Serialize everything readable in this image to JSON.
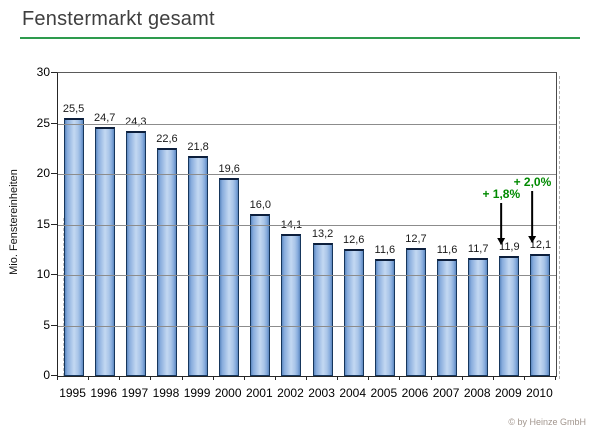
{
  "header": {
    "title": "Fenstermarkt gesamt"
  },
  "footer": {
    "copyright": "© by Heinze GmbH"
  },
  "colors": {
    "title_rule_green": "#2e9b4e",
    "annotation_green": "#008a00",
    "bar_fill_light": "#c3d8f2",
    "bar_fill_mid": "#86abdc",
    "bar_edge": "#16365c",
    "gridline": "#8c8c8c"
  },
  "chart_data": {
    "type": "bar",
    "title": "Fenstermarkt gesamt",
    "xlabel": "",
    "ylabel": "Mio. Fenstereinheiten",
    "ylim": [
      0,
      30
    ],
    "ytick_interval": 5,
    "grid": true,
    "legend": "none",
    "categories": [
      "1995",
      "1996",
      "1997",
      "1998",
      "1999",
      "2000",
      "2001",
      "2002",
      "2003",
      "2004",
      "2005",
      "2006",
      "2007",
      "2008",
      "2009",
      "2010"
    ],
    "values": [
      25.5,
      24.7,
      24.3,
      22.6,
      21.8,
      19.6,
      16.0,
      14.1,
      13.2,
      12.6,
      11.6,
      12.7,
      11.6,
      11.7,
      11.9,
      12.1
    ],
    "value_labels": [
      "25,5",
      "24,7",
      "24,3",
      "22,6",
      "21,8",
      "19,6",
      "16,0",
      "14,1",
      "13,2",
      "12,6",
      "11,6",
      "12,7",
      "11,6",
      "11,7",
      "11,9",
      "12,1"
    ],
    "annotations": [
      {
        "category": "2009",
        "text": "+ 1,8%",
        "color": "#008a00"
      },
      {
        "category": "2010",
        "text": "+ 2,0%",
        "color": "#008a00"
      }
    ]
  }
}
